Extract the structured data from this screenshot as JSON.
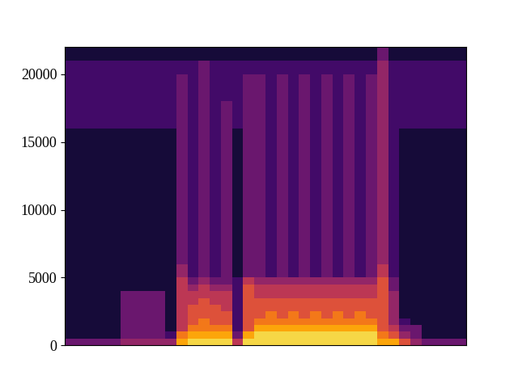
{
  "chart_data": {
    "type": "spectrogram",
    "color": "inferno",
    "clim": [
      0,
      10
    ],
    "tick_labels": "y",
    "ylim": [
      0,
      22050
    ],
    "yticks": [
      0,
      5000,
      10000,
      15000,
      20000
    ],
    "y_bins": [
      0,
      500,
      1000,
      1500,
      2000,
      2500,
      3000,
      3500,
      4000,
      4500,
      5000,
      6000,
      8000,
      10000,
      12000,
      14000,
      16000,
      18000,
      20000,
      21000,
      22050
    ],
    "cells": [
      [
        3,
        1,
        1,
        1,
        1,
        1,
        1,
        1,
        1,
        1,
        1,
        1,
        1,
        1,
        1,
        1,
        2,
        2,
        2,
        1
      ],
      [
        3,
        1,
        1,
        1,
        1,
        1,
        1,
        1,
        1,
        1,
        1,
        1,
        1,
        1,
        1,
        1,
        2,
        2,
        2,
        1
      ],
      [
        3,
        1,
        1,
        1,
        1,
        1,
        1,
        1,
        1,
        1,
        1,
        1,
        1,
        1,
        1,
        1,
        2,
        2,
        2,
        1
      ],
      [
        3,
        1,
        1,
        1,
        1,
        1,
        1,
        1,
        1,
        1,
        1,
        1,
        1,
        1,
        1,
        1,
        2,
        2,
        2,
        1
      ],
      [
        3,
        1,
        1,
        1,
        1,
        1,
        1,
        1,
        1,
        1,
        1,
        1,
        1,
        1,
        1,
        1,
        2,
        2,
        2,
        1
      ],
      [
        4,
        3,
        3,
        3,
        3,
        3,
        3,
        3,
        1,
        1,
        1,
        1,
        1,
        1,
        1,
        1,
        2,
        2,
        2,
        1
      ],
      [
        4,
        3,
        3,
        3,
        3,
        3,
        3,
        3,
        1,
        1,
        1,
        1,
        1,
        1,
        1,
        1,
        2,
        2,
        2,
        1
      ],
      [
        4,
        3,
        3,
        3,
        3,
        3,
        3,
        3,
        1,
        1,
        1,
        1,
        1,
        1,
        1,
        1,
        2,
        2,
        2,
        1
      ],
      [
        4,
        3,
        3,
        3,
        3,
        3,
        3,
        3,
        1,
        1,
        1,
        1,
        1,
        1,
        1,
        1,
        2,
        2,
        2,
        1
      ],
      [
        4,
        2,
        1,
        1,
        1,
        1,
        1,
        1,
        1,
        1,
        1,
        1,
        1,
        1,
        1,
        1,
        2,
        2,
        2,
        1
      ],
      [
        8,
        7,
        5,
        5,
        5,
        5,
        5,
        5,
        5,
        5,
        4,
        3,
        3,
        3,
        3,
        3,
        3,
        3,
        2,
        1
      ],
      [
        9,
        8,
        7,
        6,
        6,
        6,
        5,
        5,
        4,
        3,
        2,
        2,
        2,
        2,
        2,
        2,
        2,
        2,
        2,
        1
      ],
      [
        9,
        8,
        7,
        7,
        6,
        6,
        6,
        5,
        5,
        4,
        3,
        3,
        3,
        3,
        3,
        3,
        3,
        3,
        3,
        1
      ],
      [
        9,
        8,
        7,
        6,
        6,
        6,
        5,
        5,
        4,
        3,
        2,
        2,
        2,
        2,
        2,
        2,
        2,
        2,
        2,
        1
      ],
      [
        9,
        8,
        7,
        6,
        6,
        5,
        5,
        5,
        4,
        3,
        3,
        3,
        3,
        3,
        3,
        3,
        3,
        2,
        2,
        1
      ],
      [
        5,
        3,
        2,
        2,
        2,
        2,
        2,
        2,
        2,
        2,
        1,
        1,
        1,
        1,
        1,
        1,
        2,
        2,
        2,
        1
      ],
      [
        9,
        8,
        6,
        6,
        6,
        6,
        6,
        6,
        6,
        5,
        3,
        3,
        3,
        3,
        3,
        3,
        3,
        3,
        2,
        1
      ],
      [
        9,
        9,
        8,
        7,
        6,
        6,
        6,
        5,
        5,
        4,
        3,
        3,
        3,
        3,
        3,
        3,
        3,
        3,
        2,
        1
      ],
      [
        9,
        9,
        8,
        7,
        7,
        6,
        6,
        5,
        5,
        4,
        2,
        2,
        2,
        2,
        2,
        2,
        2,
        2,
        2,
        1
      ],
      [
        9,
        9,
        8,
        7,
        6,
        6,
        6,
        5,
        5,
        4,
        3,
        3,
        3,
        3,
        3,
        3,
        3,
        3,
        2,
        1
      ],
      [
        9,
        9,
        8,
        7,
        7,
        6,
        6,
        5,
        5,
        4,
        2,
        2,
        2,
        2,
        2,
        2,
        2,
        2,
        2,
        1
      ],
      [
        9,
        9,
        8,
        7,
        6,
        6,
        6,
        5,
        5,
        4,
        3,
        3,
        3,
        3,
        3,
        3,
        3,
        3,
        2,
        1
      ],
      [
        9,
        9,
        8,
        7,
        7,
        6,
        6,
        5,
        5,
        4,
        2,
        2,
        2,
        2,
        2,
        2,
        2,
        2,
        2,
        1
      ],
      [
        9,
        9,
        8,
        7,
        6,
        6,
        6,
        5,
        5,
        4,
        3,
        3,
        3,
        3,
        3,
        3,
        3,
        3,
        2,
        1
      ],
      [
        9,
        9,
        8,
        7,
        7,
        6,
        6,
        5,
        5,
        4,
        2,
        2,
        2,
        2,
        2,
        2,
        2,
        2,
        2,
        1
      ],
      [
        9,
        9,
        8,
        7,
        6,
        6,
        6,
        5,
        5,
        4,
        3,
        3,
        3,
        3,
        3,
        3,
        3,
        3,
        2,
        1
      ],
      [
        9,
        9,
        8,
        7,
        7,
        6,
        6,
        5,
        5,
        4,
        2,
        2,
        2,
        2,
        2,
        2,
        2,
        2,
        2,
        1
      ],
      [
        9,
        9,
        8,
        7,
        6,
        6,
        6,
        5,
        5,
        4,
        3,
        3,
        3,
        3,
        3,
        3,
        3,
        3,
        2,
        1
      ],
      [
        8,
        7,
        6,
        6,
        6,
        6,
        6,
        6,
        6,
        6,
        5,
        4,
        4,
        4,
        4,
        4,
        4,
        4,
        4,
        3
      ],
      [
        8,
        6,
        5,
        4,
        4,
        4,
        4,
        4,
        3,
        3,
        2,
        2,
        2,
        2,
        2,
        2,
        2,
        2,
        2,
        1
      ],
      [
        6,
        4,
        3,
        2,
        1,
        1,
        1,
        1,
        1,
        1,
        1,
        1,
        1,
        1,
        1,
        1,
        2,
        2,
        2,
        1
      ],
      [
        4,
        3,
        3,
        1,
        1,
        1,
        1,
        1,
        1,
        1,
        1,
        1,
        1,
        1,
        1,
        1,
        2,
        2,
        2,
        1
      ],
      [
        3,
        1,
        1,
        1,
        1,
        1,
        1,
        1,
        1,
        1,
        1,
        1,
        1,
        1,
        1,
        1,
        2,
        2,
        2,
        1
      ],
      [
        3,
        1,
        1,
        1,
        1,
        1,
        1,
        1,
        1,
        1,
        1,
        1,
        1,
        1,
        1,
        1,
        2,
        2,
        2,
        1
      ],
      [
        3,
        1,
        1,
        1,
        1,
        1,
        1,
        1,
        1,
        1,
        1,
        1,
        1,
        1,
        1,
        1,
        2,
        2,
        2,
        1
      ],
      [
        3,
        1,
        1,
        1,
        1,
        1,
        1,
        1,
        1,
        1,
        1,
        1,
        1,
        1,
        1,
        1,
        2,
        2,
        2,
        1
      ]
    ]
  }
}
